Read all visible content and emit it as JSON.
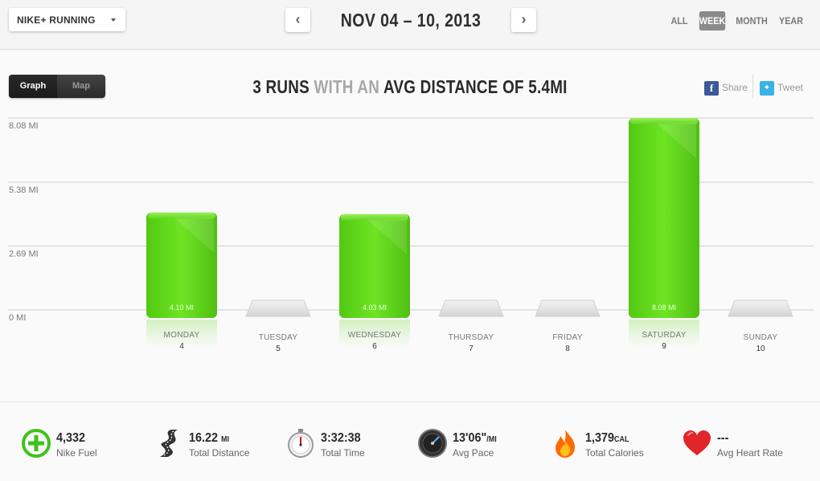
{
  "header": {
    "app_selector": "NIKE+ RUNNING",
    "prev_label": "‹",
    "next_label": "›",
    "date_range": "NOV 04 – 10, 2013",
    "range_tabs": [
      {
        "label": "ALL",
        "active": false
      },
      {
        "label": "WEEK",
        "active": true
      },
      {
        "label": "MONTH",
        "active": false
      },
      {
        "label": "YEAR",
        "active": false
      }
    ]
  },
  "view_toggle": {
    "graph": "Graph",
    "map": "Map",
    "active": "Graph"
  },
  "headline": {
    "runs": "3 RUNS",
    "with_an": "WITH AN",
    "avg": "AVG DISTANCE OF 5.4MI"
  },
  "share": {
    "facebook": "Share",
    "twitter": "Tweet"
  },
  "chart_data": {
    "type": "bar",
    "y_ticks": [
      "8.08 MI",
      "5.38 MI",
      "2.69 MI",
      "0 MI"
    ],
    "y_tick_values": [
      8.08,
      5.38,
      2.69,
      0
    ],
    "ylim": [
      0,
      8.08
    ],
    "grid": true,
    "categories": [
      "MONDAY",
      "TUESDAY",
      "WEDNESDAY",
      "THURSDAY",
      "FRIDAY",
      "SATURDAY",
      "SUNDAY"
    ],
    "day_numbers": [
      "4",
      "5",
      "6",
      "7",
      "8",
      "9",
      "10"
    ],
    "values": [
      4.1,
      0,
      4.03,
      0,
      0,
      8.08,
      0
    ],
    "value_labels": [
      "4.10 MI",
      "",
      "4.03 MI",
      "",
      "",
      "8.08 MI",
      ""
    ],
    "bar_color": "#5fd41a",
    "empty_color": "#e2e2e2"
  },
  "stats": [
    {
      "value": "4,332",
      "unit": "",
      "label": "Nike Fuel",
      "icon": "nike-fuel-icon"
    },
    {
      "value": "16.22",
      "unit": "MI",
      "label": "Total Distance",
      "icon": "road-icon"
    },
    {
      "value": "3:32:38",
      "unit": "",
      "label": "Total Time",
      "icon": "stopwatch-icon"
    },
    {
      "value": "13'06\"",
      "unit": "/MI",
      "label": "Avg Pace",
      "icon": "speedometer-icon"
    },
    {
      "value": "1,379",
      "unit": "CAL",
      "label": "Total Calories",
      "icon": "flame-icon"
    },
    {
      "value": "---",
      "unit": "",
      "label": "Avg Heart Rate",
      "icon": "heart-icon"
    }
  ]
}
